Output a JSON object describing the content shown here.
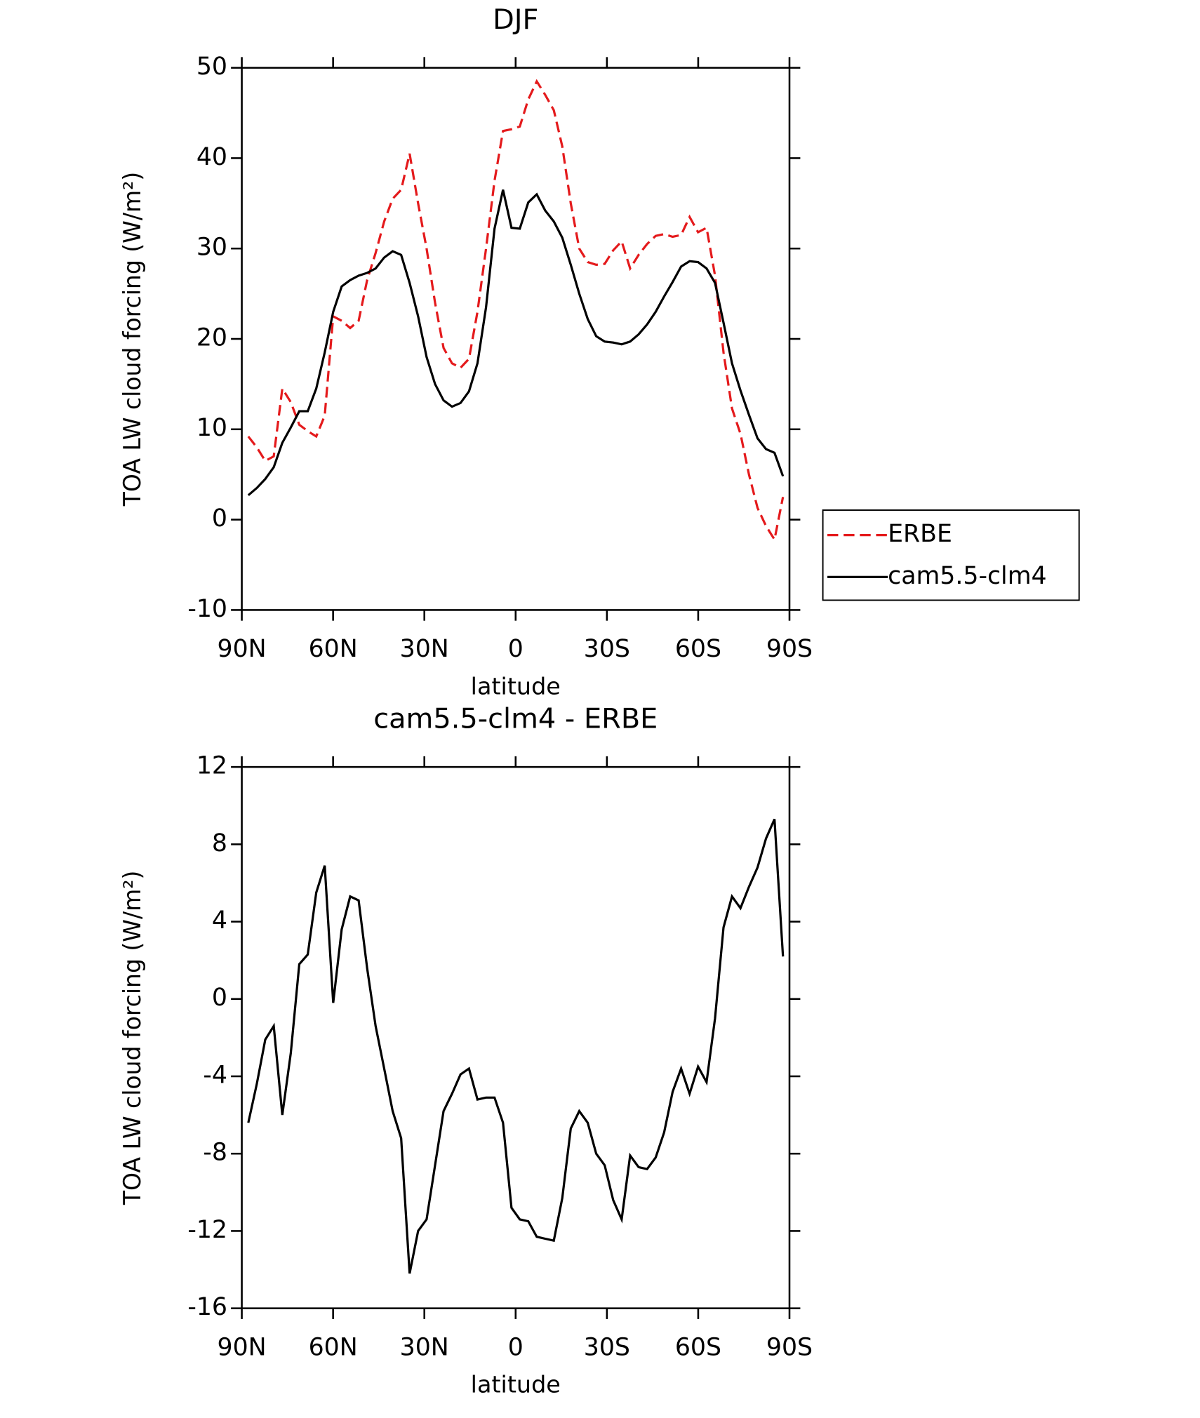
{
  "chart_data": [
    {
      "type": "line",
      "title": "DJF",
      "xlabel": "latitude",
      "ylabel": "TOA LW cloud forcing (W/m²)",
      "x": [
        87.86,
        85.07,
        82.28,
        79.49,
        76.7,
        73.91,
        71.12,
        68.33,
        65.54,
        62.75,
        59.96,
        57.17,
        54.38,
        51.59,
        48.8,
        46.01,
        43.22,
        40.43,
        37.64,
        34.85,
        32.06,
        29.27,
        26.48,
        23.69,
        20.9,
        18.11,
        15.32,
        12.53,
        9.74,
        6.95,
        4.16,
        1.37,
        -1.37,
        -4.16,
        -6.95,
        -9.74,
        -12.53,
        -15.32,
        -18.11,
        -20.9,
        -23.69,
        -26.48,
        -29.27,
        -32.06,
        -34.85,
        -37.64,
        -40.43,
        -43.22,
        -46.01,
        -48.8,
        -51.59,
        -54.38,
        -57.17,
        -59.96,
        -62.75,
        -65.54,
        -68.33,
        -71.12,
        -73.91,
        -76.7,
        -79.49,
        -82.28,
        -85.07,
        -87.86
      ],
      "series": [
        {
          "name": "ERBE",
          "color": "#e41a1c",
          "dash": true,
          "values": [
            9.2,
            8,
            6.5,
            7,
            14.5,
            13,
            10.5,
            9.8,
            9.2,
            11.5,
            22.5,
            22,
            21.2,
            22,
            26.5,
            29.5,
            33,
            35.5,
            36.5,
            40.5,
            35,
            30,
            24,
            19,
            17.3,
            16.8,
            17.8,
            23,
            30,
            37.5,
            43,
            43.2,
            43.5,
            46.5,
            48.5,
            47,
            45.3,
            41.3,
            35,
            30,
            28.5,
            28.2,
            28.3,
            29.8,
            30.8,
            27.8,
            29.3,
            30.5,
            31.4,
            31.6,
            31.3,
            31.5,
            33.5,
            31.8,
            32.3,
            27,
            18.5,
            12.3,
            9.5,
            5,
            1.3,
            -0.7,
            -2.2,
            2.5
          ]
        },
        {
          "name": "cam5.5-clm4",
          "color": "#000000",
          "dash": false,
          "values": [
            2.7,
            3.5,
            4.5,
            5.8,
            8.5,
            10.2,
            12,
            12,
            14.5,
            18.5,
            23,
            25.8,
            26.5,
            27,
            27.3,
            27.8,
            29,
            29.7,
            29.3,
            26.2,
            22.5,
            18,
            15,
            13.2,
            12.5,
            12.9,
            14.2,
            17.3,
            23.5,
            32.2,
            36.5,
            32.3,
            32.2,
            35.1,
            36,
            34.2,
            33,
            31.2,
            28.2,
            25,
            22.2,
            20.3,
            19.7,
            19.6,
            19.4,
            19.7,
            20.5,
            21.6,
            23,
            24.7,
            26.3,
            28,
            28.6,
            28.5,
            27.8,
            26.2,
            21.8,
            17.3,
            14.3,
            11.6,
            9,
            7.8,
            7.4,
            4.8
          ]
        }
      ],
      "xlim": [
        90,
        -90
      ],
      "xticks": [
        {
          "value": 90,
          "label": "90N"
        },
        {
          "value": 60,
          "label": "60N"
        },
        {
          "value": 30,
          "label": "30N"
        },
        0,
        {
          "value": -30,
          "label": "30S"
        },
        {
          "value": -60,
          "label": "60S"
        },
        {
          "value": -90,
          "label": "90S"
        }
      ],
      "ylim": [
        -10,
        50
      ],
      "yticks": [
        -10,
        0,
        10,
        20,
        30,
        40,
        50
      ],
      "legend": "right"
    },
    {
      "type": "line",
      "title": "cam5.5-clm4 - ERBE",
      "xlabel": "latitude",
      "ylabel": "TOA LW cloud forcing (W/m²)",
      "x": [
        87.86,
        85.07,
        82.28,
        79.49,
        76.7,
        73.91,
        71.12,
        68.33,
        65.54,
        62.75,
        59.96,
        57.17,
        54.38,
        51.59,
        48.8,
        46.01,
        43.22,
        40.43,
        37.64,
        34.85,
        32.06,
        29.27,
        26.48,
        23.69,
        20.9,
        18.11,
        15.32,
        12.53,
        9.74,
        6.95,
        4.16,
        1.37,
        -1.37,
        -4.16,
        -6.95,
        -9.74,
        -12.53,
        -15.32,
        -18.11,
        -20.9,
        -23.69,
        -26.48,
        -29.27,
        -32.06,
        -34.85,
        -37.64,
        -40.43,
        -43.22,
        -46.01,
        -48.8,
        -51.59,
        -54.38,
        -57.17,
        -59.96,
        -62.75,
        -65.54,
        -68.33,
        -71.12,
        -73.91,
        -76.7,
        -79.49,
        -82.28,
        -85.07,
        -87.86
      ],
      "series": [
        {
          "color": "#000000",
          "dash": false,
          "values": [
            -6.4,
            -4.4,
            -2.1,
            -1.4,
            -6,
            -2.8,
            1.8,
            2.3,
            5.5,
            6.9,
            -0.2,
            3.6,
            5.3,
            5.1,
            1.6,
            -1.4,
            -3.6,
            -5.8,
            -7.2,
            -14.2,
            -12,
            -11.4,
            -8.6,
            -5.8,
            -4.9,
            -3.9,
            -3.6,
            -5.2,
            -5.1,
            -5.1,
            -6.4,
            -10.8,
            -11.4,
            -11.5,
            -12.3,
            -12.4,
            -12.5,
            -10.3,
            -6.7,
            -5.8,
            -6.4,
            -8,
            -8.6,
            -10.4,
            -11.4,
            -8.1,
            -8.7,
            -8.8,
            -8.2,
            -6.9,
            -4.8,
            -3.6,
            -4.9,
            -3.5,
            -4.3,
            -1,
            3.7,
            5.3,
            4.7,
            5.8,
            6.8,
            8.3,
            9.3,
            2.2
          ]
        }
      ],
      "xlim": [
        90,
        -90
      ],
      "xticks": [
        {
          "value": 90,
          "label": "90N"
        },
        {
          "value": 60,
          "label": "60N"
        },
        {
          "value": 30,
          "label": "30N"
        },
        0,
        {
          "value": -30,
          "label": "30S"
        },
        {
          "value": -60,
          "label": "60S"
        },
        {
          "value": -90,
          "label": "90S"
        }
      ],
      "ylim": [
        -16,
        12
      ],
      "yticks": [
        -16,
        -12,
        -8,
        -4,
        0,
        4,
        8,
        12
      ]
    }
  ]
}
